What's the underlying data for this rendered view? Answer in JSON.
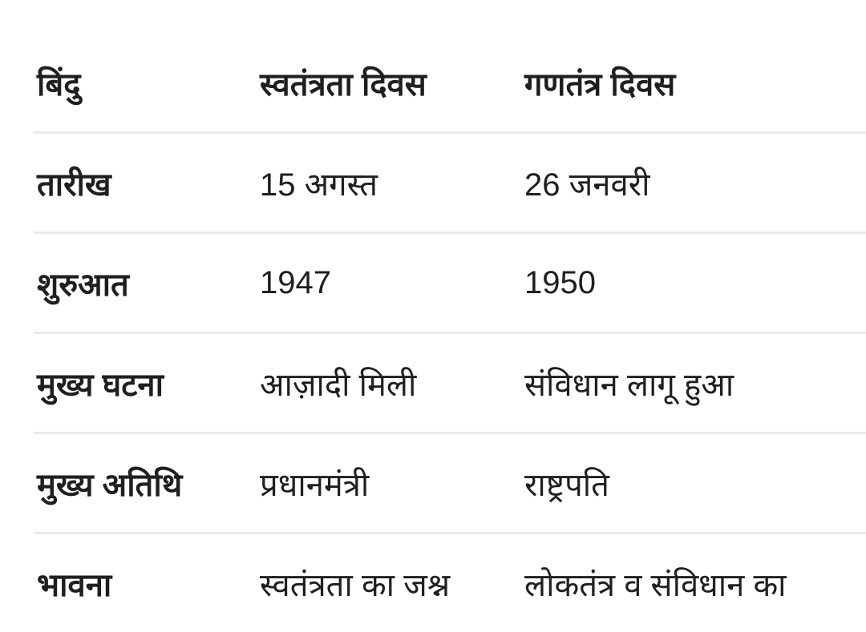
{
  "table": {
    "headers": [
      "बिंदु",
      "स्वतंत्रता दिवस",
      "गणतंत्र दिवस"
    ],
    "rows": [
      [
        "तारीख",
        "15 अगस्त",
        "26 जनवरी"
      ],
      [
        "शुरुआत",
        "1947",
        "1950"
      ],
      [
        "मुख्य घटना",
        "आज़ादी मिली",
        "संविधान लागू हुआ"
      ],
      [
        "मुख्य अतिथि",
        "प्रधानमंत्री",
        "राष्ट्रपति"
      ],
      [
        "भावना",
        "स्वतंत्रता का जश्न",
        "लोकतंत्र व संविधान का"
      ]
    ]
  }
}
